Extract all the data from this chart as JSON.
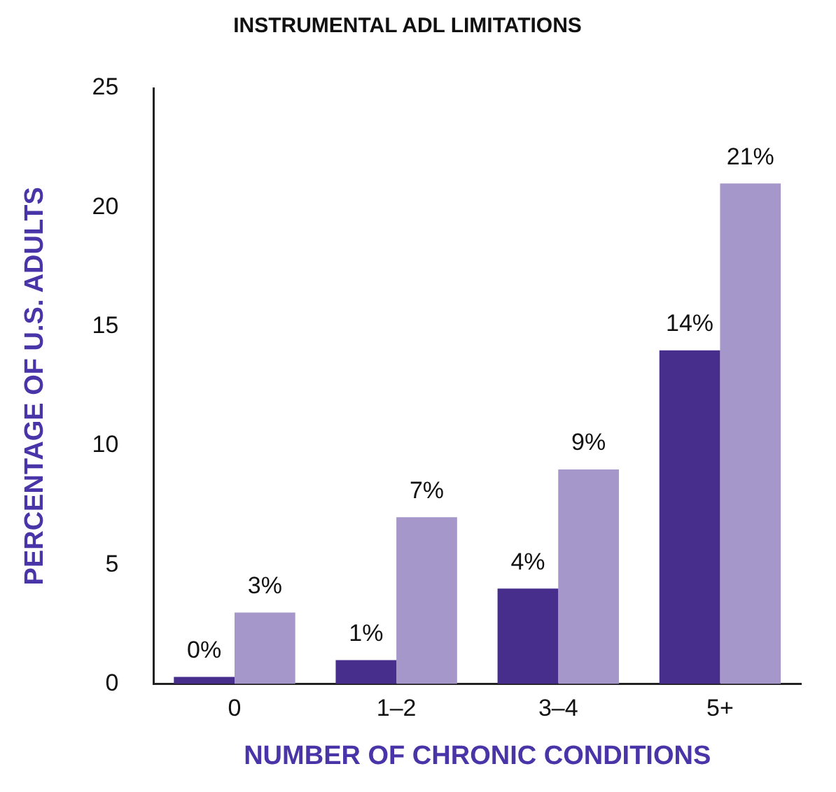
{
  "chart_data": {
    "type": "bar",
    "title": "INSTRUMENTAL ADL LIMITATIONS",
    "xlabel": "NUMBER OF CHRONIC CONDITIONS",
    "ylabel": "PERCENTAGE OF U.S. ADULTS",
    "categories": [
      "0",
      "1–2",
      "3–4",
      "5+"
    ],
    "series": [
      {
        "color": "#472d8c",
        "values": [
          0.3,
          1,
          4,
          14
        ],
        "value_labels": [
          "0%",
          "1%",
          "4%",
          "14%"
        ]
      },
      {
        "color": "#a597c9",
        "values": [
          3,
          7,
          9,
          21
        ],
        "value_labels": [
          "3%",
          "7%",
          "9%",
          "21%"
        ]
      }
    ],
    "ylim": [
      0,
      25
    ],
    "yticks": [
      0,
      5,
      10,
      15,
      20,
      25
    ],
    "grid": false,
    "legend": false
  }
}
